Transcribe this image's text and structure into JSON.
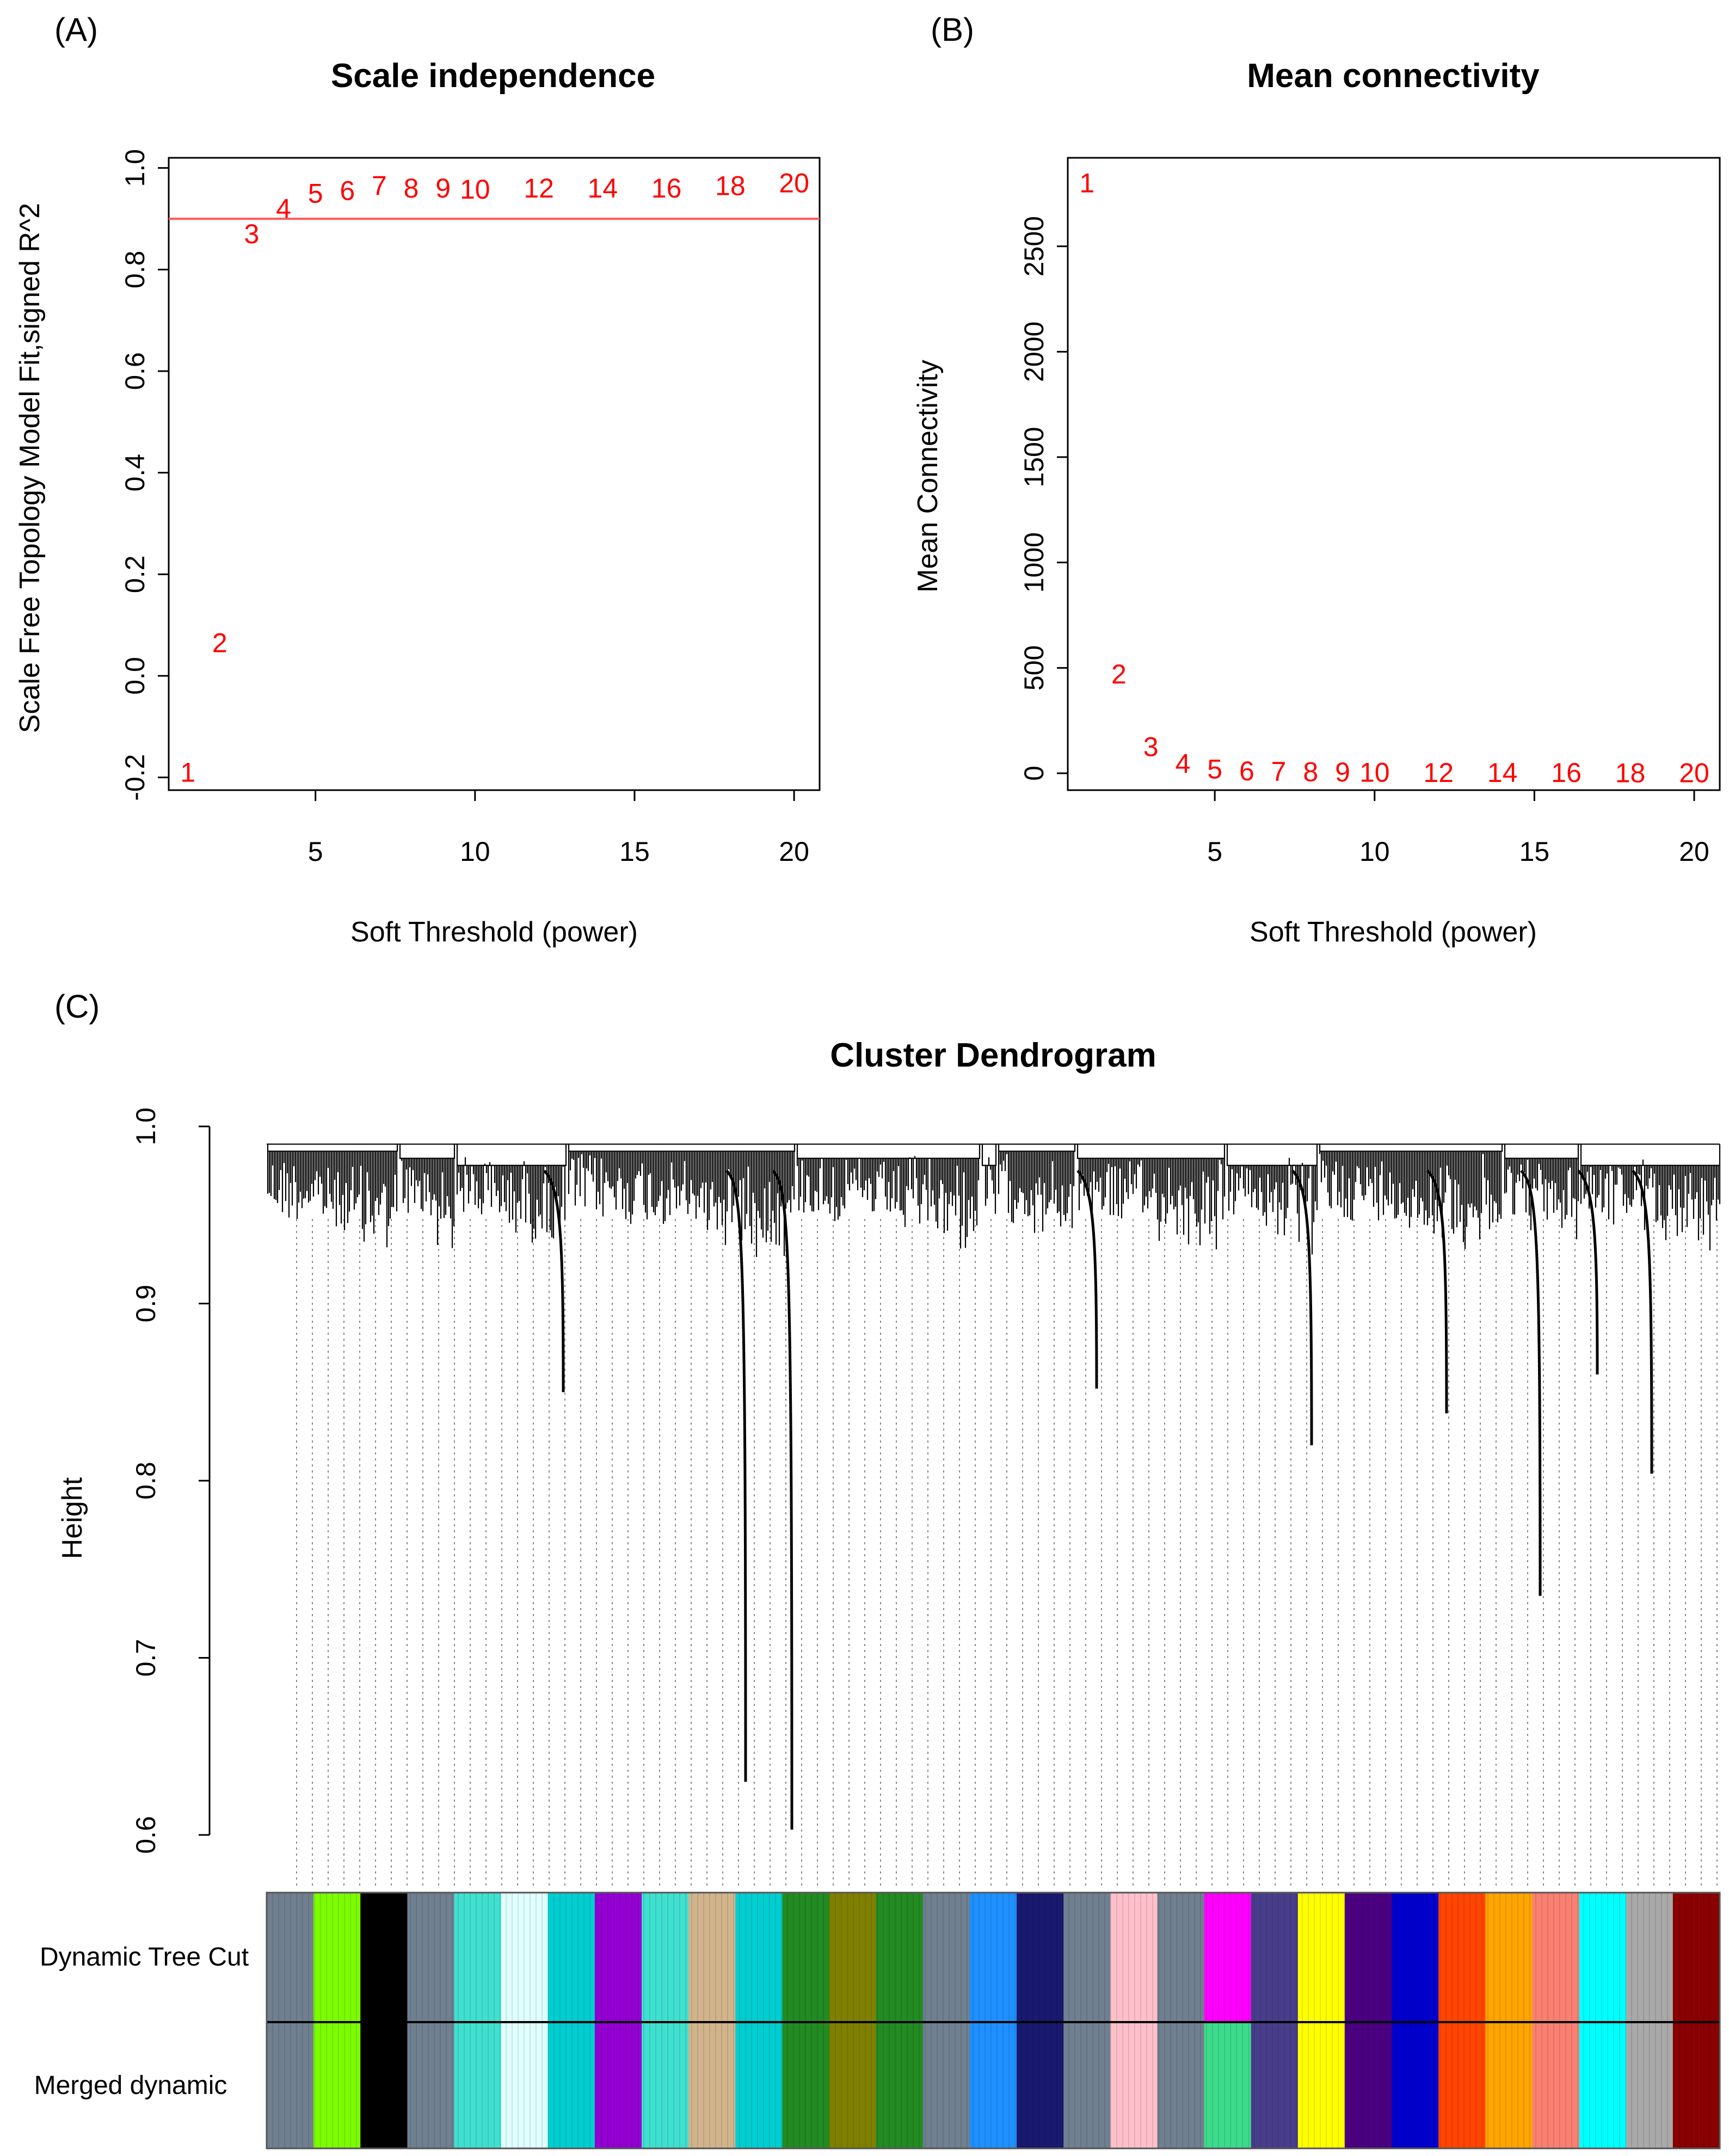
{
  "panels": {
    "a_label": "(A)",
    "b_label": "(B)",
    "c_label": "(C)"
  },
  "colors": {
    "point_text": "#ff0000",
    "threshold_line": "#ff5a5a",
    "axis": "#000000"
  },
  "chart_data": [
    {
      "type": "scatter",
      "title": "Scale independence",
      "xlabel": "Soft Threshold (power)",
      "ylabel": "Scale Free Topology Model Fit,signed R^2",
      "xlim": [
        0.4,
        20.8
      ],
      "ylim": [
        -0.225,
        1.02
      ],
      "xticks": [
        5,
        10,
        15,
        20
      ],
      "yticks": [
        -0.2,
        0.0,
        0.2,
        0.4,
        0.6,
        0.8,
        1.0
      ],
      "ytick_labels": [
        "-0.2",
        "0.0",
        "0.2",
        "0.4",
        "0.6",
        "0.8",
        "1.0"
      ],
      "marker": "power value printed as text",
      "points": [
        {
          "label": "1",
          "x": 1,
          "y": -0.19
        },
        {
          "label": "2",
          "x": 2,
          "y": 0.065
        },
        {
          "label": "3",
          "x": 3,
          "y": 0.87
        },
        {
          "label": "4",
          "x": 4,
          "y": 0.92
        },
        {
          "label": "5",
          "x": 5,
          "y": 0.95
        },
        {
          "label": "6",
          "x": 6,
          "y": 0.955
        },
        {
          "label": "7",
          "x": 7,
          "y": 0.965
        },
        {
          "label": "8",
          "x": 8,
          "y": 0.96
        },
        {
          "label": "9",
          "x": 9,
          "y": 0.96
        },
        {
          "label": "10",
          "x": 10,
          "y": 0.958
        },
        {
          "label": "12",
          "x": 12,
          "y": 0.96
        },
        {
          "label": "14",
          "x": 14,
          "y": 0.96
        },
        {
          "label": "16",
          "x": 16,
          "y": 0.96
        },
        {
          "label": "18",
          "x": 18,
          "y": 0.965
        },
        {
          "label": "20",
          "x": 20,
          "y": 0.97
        }
      ],
      "hline": 0.9
    },
    {
      "type": "scatter",
      "title": "Mean connectivity",
      "xlabel": "Soft Threshold (power)",
      "ylabel": "Mean Connectivity",
      "xlim": [
        0.4,
        20.8
      ],
      "ylim": [
        -80,
        2920
      ],
      "xticks": [
        5,
        10,
        15,
        20
      ],
      "yticks": [
        0,
        500,
        1000,
        1500,
        2000,
        2500
      ],
      "ytick_labels": [
        "0",
        "500",
        "1000",
        "1500",
        "2000",
        "2500"
      ],
      "marker": "power value printed as text",
      "points": [
        {
          "label": "1",
          "x": 1,
          "y": 2800
        },
        {
          "label": "2",
          "x": 2,
          "y": 470
        },
        {
          "label": "3",
          "x": 3,
          "y": 125
        },
        {
          "label": "4",
          "x": 4,
          "y": 45
        },
        {
          "label": "5",
          "x": 5,
          "y": 20
        },
        {
          "label": "6",
          "x": 6,
          "y": 10
        },
        {
          "label": "7",
          "x": 7,
          "y": 8
        },
        {
          "label": "8",
          "x": 8,
          "y": 6
        },
        {
          "label": "9",
          "x": 9,
          "y": 5
        },
        {
          "label": "10",
          "x": 10,
          "y": 4
        },
        {
          "label": "12",
          "x": 12,
          "y": 3
        },
        {
          "label": "14",
          "x": 14,
          "y": 2
        },
        {
          "label": "16",
          "x": 16,
          "y": 2
        },
        {
          "label": "18",
          "x": 18,
          "y": 1
        },
        {
          "label": "20",
          "x": 20,
          "y": 1
        }
      ]
    },
    {
      "type": "dendrogram",
      "title": "Cluster Dendrogram",
      "ylabel": "Height",
      "ylim": [
        0.6,
        1.0
      ],
      "yticks": [
        0.6,
        0.7,
        0.8,
        0.9,
        1.0
      ],
      "ytick_labels": [
        "0.6",
        "0.7",
        "0.8",
        "0.9",
        "1.0"
      ],
      "root_height": 0.99,
      "deep_branch_tips": [
        0.85,
        0.63,
        0.603,
        0.852,
        0.82,
        0.838,
        0.735,
        0.804,
        0.86
      ],
      "color_rows": [
        "Dynamic Tree Cut",
        "Merged dynamic"
      ],
      "module_colors_dynamic": [
        "#708090",
        "#7cfc00",
        "#000000",
        "#708090",
        "#40e0d0",
        "#e0ffff",
        "#00ced1",
        "#9400d3",
        "#40e0d0",
        "#d2b48c",
        "#00ced1",
        "#228b22",
        "#808000",
        "#228b22",
        "#708090",
        "#1e90ff",
        "#191970",
        "#708090",
        "#ffc0cb",
        "#708090",
        "#ff00ff",
        "#483d8b",
        "#ffff00",
        "#4b0082",
        "#0000cd",
        "#ff4500",
        "#ffa500",
        "#fa8072",
        "#00ffff",
        "#a9a9a9",
        "#8b0000"
      ],
      "module_colors_merged": [
        "#708090",
        "#7cfc00",
        "#000000",
        "#708090",
        "#40e0d0",
        "#e0ffff",
        "#00ced1",
        "#9400d3",
        "#40e0d0",
        "#d2b48c",
        "#00ced1",
        "#228b22",
        "#808000",
        "#228b22",
        "#708090",
        "#1e90ff",
        "#191970",
        "#708090",
        "#ffc0cb",
        "#708090",
        "#3cdc8c",
        "#483d8b",
        "#ffff00",
        "#4b0082",
        "#0000cd",
        "#ff4500",
        "#ffa500",
        "#fa8072",
        "#00ffff",
        "#a9a9a9",
        "#8b0000"
      ]
    }
  ]
}
